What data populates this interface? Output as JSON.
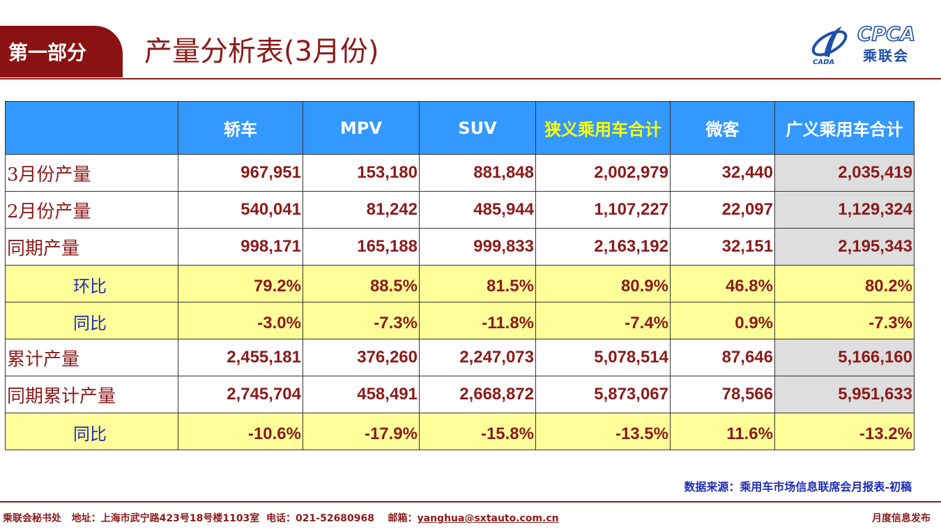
{
  "header": {
    "section_tab": "第一部分",
    "title": "产量分析表(3月份)",
    "logo_text": "CPCA",
    "logo_cn": "乘联会",
    "logo_sub": "CADA"
  },
  "table": {
    "columns": [
      "",
      "轿车",
      "MPV",
      "SUV",
      "狭义乘用车合计",
      "微客",
      "广义乘用车合计"
    ],
    "rows": [
      {
        "label": "3月份产量",
        "values": [
          "967,951",
          "153,180",
          "881,848",
          "2,002,979",
          "32,440",
          "2,035,419"
        ]
      },
      {
        "label": "2月份产量",
        "values": [
          "540,041",
          "81,242",
          "485,944",
          "1,107,227",
          "22,097",
          "1,129,324"
        ]
      },
      {
        "label": "同期产量",
        "values": [
          "998,171",
          "165,188",
          "999,833",
          "2,163,192",
          "32,151",
          "2,195,343"
        ]
      },
      {
        "label": "环比",
        "values": [
          "79.2%",
          "88.5%",
          "81.5%",
          "80.9%",
          "46.8%",
          "80.2%"
        ]
      },
      {
        "label": "同比",
        "values": [
          "-3.0%",
          "-7.3%",
          "-11.8%",
          "-7.4%",
          "0.9%",
          "-7.3%"
        ]
      },
      {
        "label": "累计产量",
        "values": [
          "2,455,181",
          "376,260",
          "2,247,073",
          "5,078,514",
          "87,646",
          "5,166,160"
        ]
      },
      {
        "label": "同期累计产量",
        "values": [
          "2,745,704",
          "458,491",
          "2,668,872",
          "5,873,067",
          "78,566",
          "5,951,633"
        ]
      },
      {
        "label": "同比",
        "values": [
          "-10.6%",
          "-17.9%",
          "-15.8%",
          "-13.5%",
          "11.6%",
          "-13.2%"
        ]
      }
    ]
  },
  "source_note": "数据来源：乘用车市场信息联席会月报表-初稿",
  "footer": {
    "org": "乘联会秘书处",
    "address": "地址：上海市武宁路423号18号楼1103室",
    "phone": "电话：021-52680968",
    "email_label": "邮箱：",
    "email": "yanghua@sxtauto.com.cn",
    "right": "月度信息发布"
  },
  "colors": {
    "brand_red": "#8B1A1A",
    "header_blue": "#3399FF",
    "highlight_yellow": "#FFFF00",
    "ratio_row_bg": "#FFFF99",
    "total_col_bg": "#DEDEDE",
    "label_blue": "#1F2DB5"
  }
}
